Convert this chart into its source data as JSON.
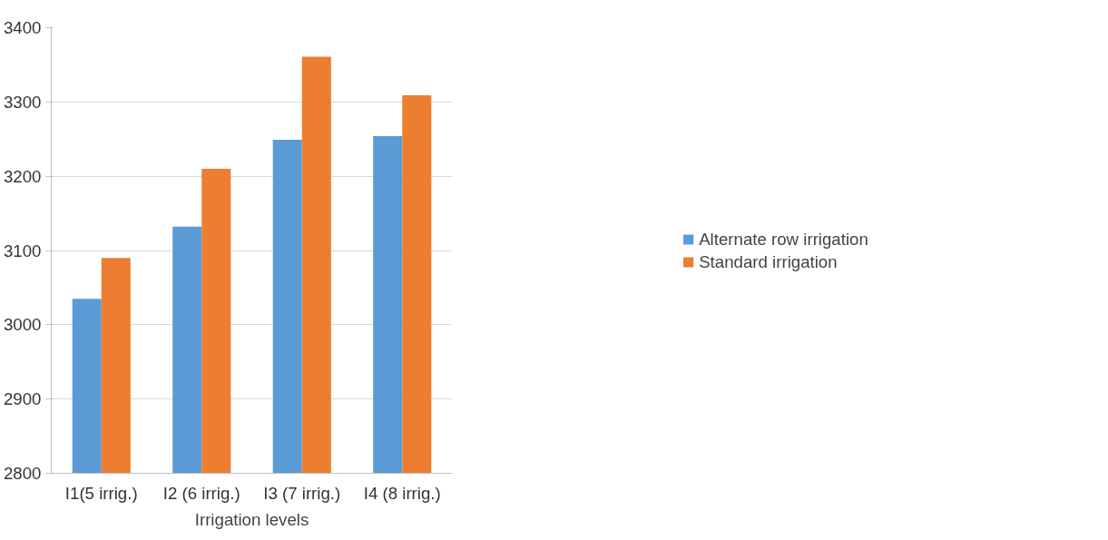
{
  "chart_data": {
    "type": "bar",
    "xlabel": "Irrigation levels",
    "categories": [
      "I1(5 irrig.)",
      "I2 (6 irrig.)",
      "I3 (7 irrig.)",
      "I4 (8 irrig.)"
    ],
    "series": [
      {
        "name": "Alternate row irrigation",
        "color": "#5b9bd5",
        "values": [
          3035,
          3132,
          3249,
          3254
        ]
      },
      {
        "name": "Standard irrigation",
        "color": "#ed7d31",
        "values": [
          3090,
          3210,
          3361,
          3309
        ]
      }
    ],
    "ylim": [
      2800,
      3400
    ],
    "yticks": [
      2800,
      2900,
      3000,
      3100,
      3200,
      3300,
      3400
    ],
    "grid": "y",
    "legend": "right"
  }
}
